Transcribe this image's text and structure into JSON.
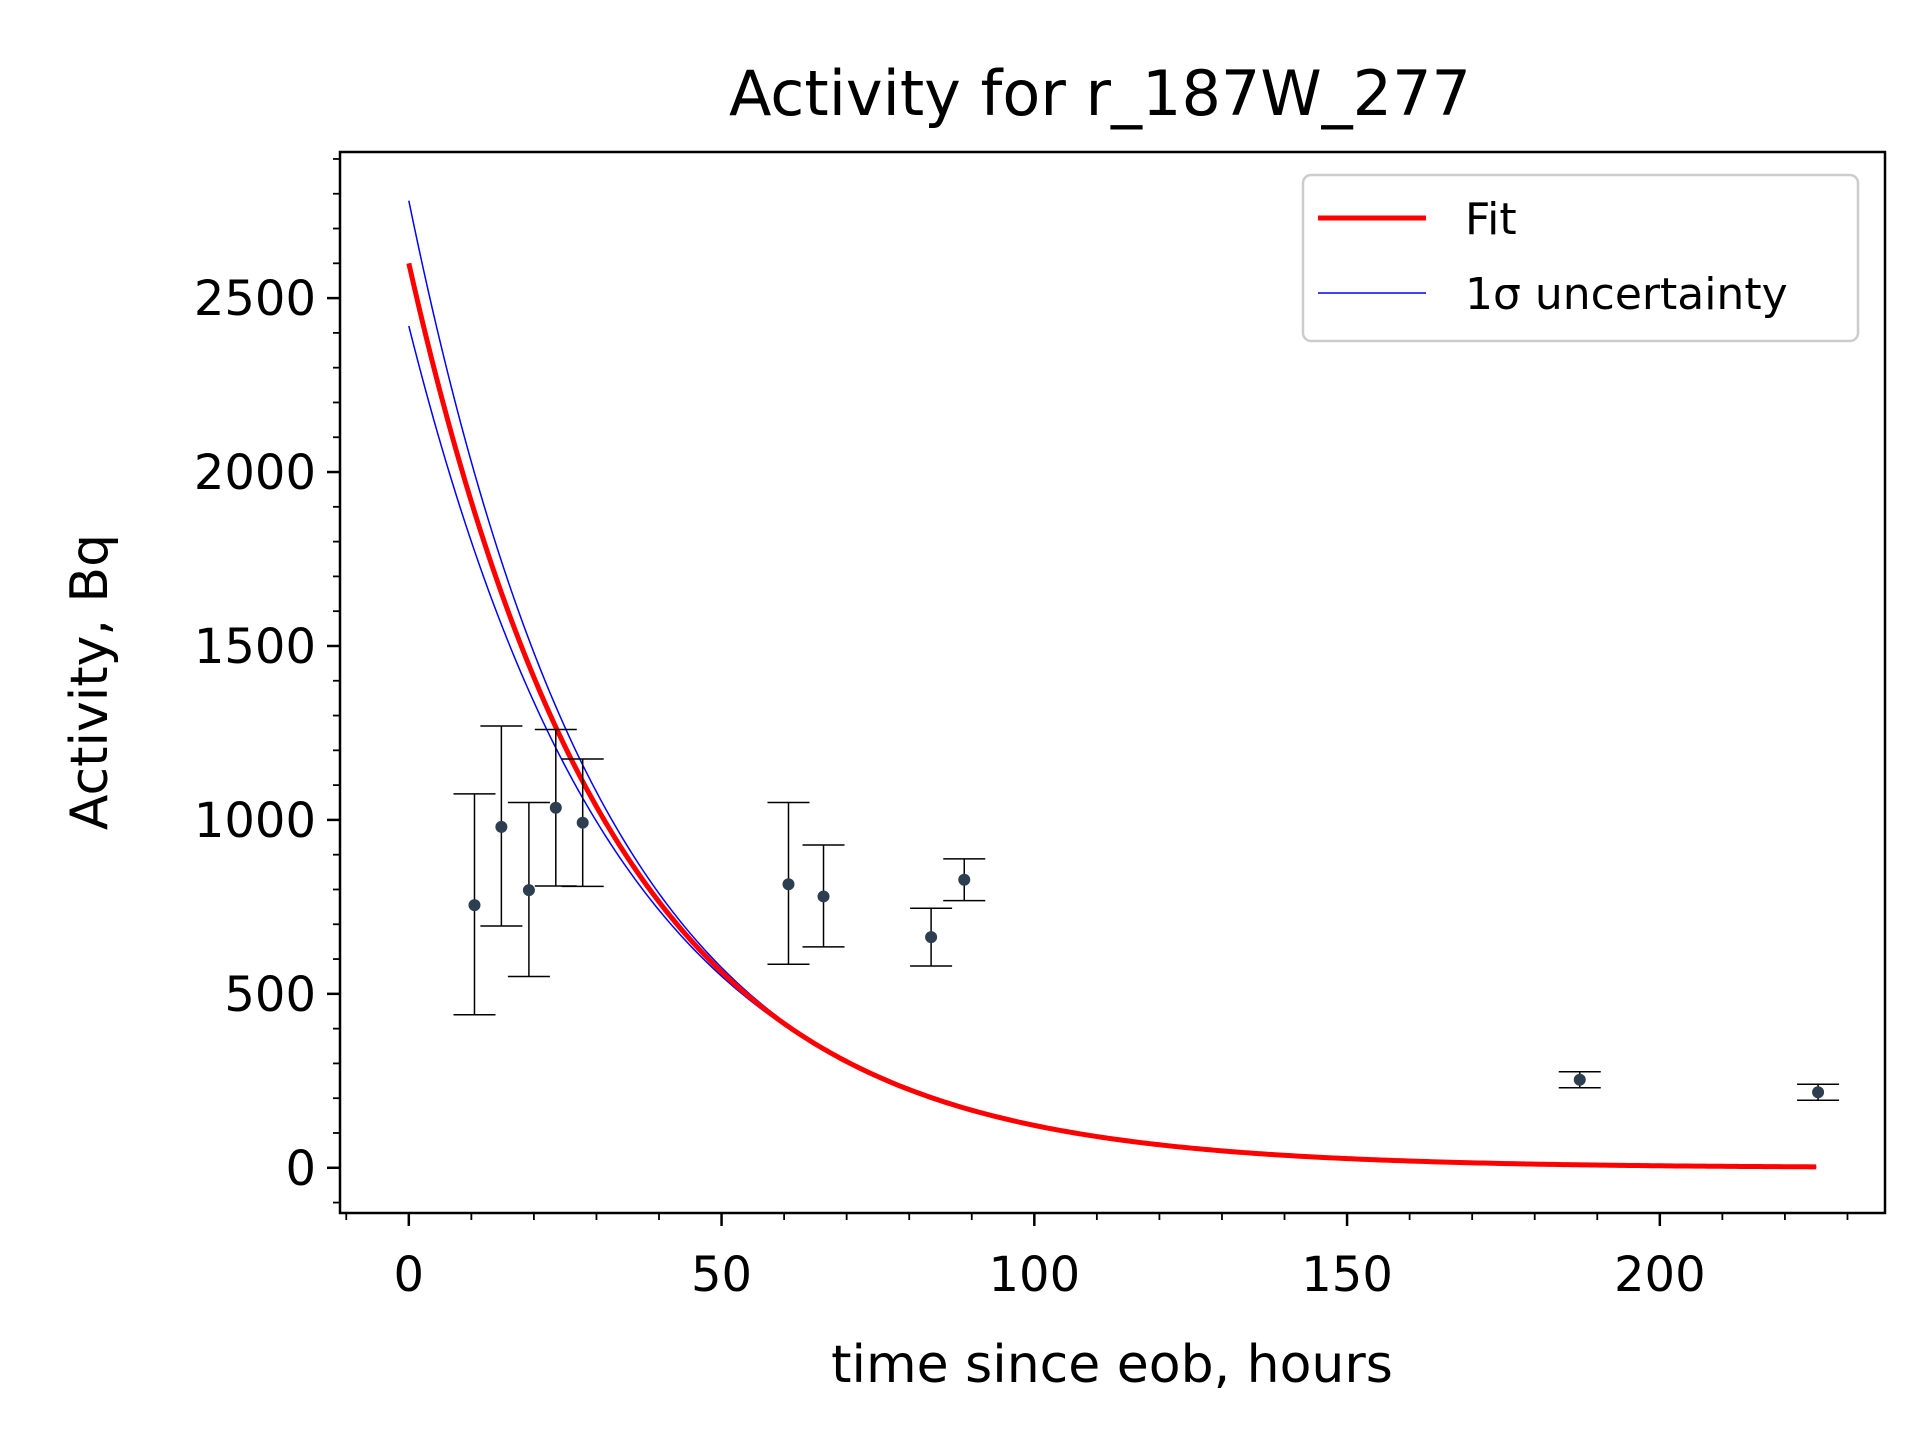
{
  "chart_data": {
    "type": "scatter",
    "title": "Activity for r_187W_277",
    "xlabel": "time since eob, hours",
    "ylabel": "Activity, Bq",
    "xlim": [
      -11,
      236
    ],
    "ylim": [
      -130,
      2920
    ],
    "xticks": [
      0,
      50,
      100,
      150,
      200
    ],
    "yticks": [
      0,
      500,
      1000,
      1500,
      2000,
      2500
    ],
    "xtick_labels": [
      "0",
      "50",
      "100",
      "150",
      "200"
    ],
    "ytick_labels": [
      "0",
      "500",
      "1000",
      "1500",
      "2000",
      "2500"
    ],
    "grid": false,
    "legend": {
      "placement": "upper right",
      "entries": [
        {
          "label": "Fit",
          "color": "#ff0000"
        },
        {
          "label": "1σ uncertainty",
          "color": "#0000ff"
        }
      ]
    },
    "colors": {
      "fit": "#ff0000",
      "uncertainty": "#0000ff",
      "points": "#2c3e50",
      "errorbars": "#000000"
    },
    "series": [
      {
        "name": "Fit",
        "kind": "curve",
        "model": "exponential_decay",
        "A0": 2600,
        "decay_constant_per_hour": 0.0306,
        "x_range": [
          0,
          225
        ]
      },
      {
        "name": "1σ uncertainty",
        "kind": "band",
        "upper": {
          "A0": 2780,
          "decay_constant_per_hour": 0.0315
        },
        "lower": {
          "A0": 2420,
          "decay_constant_per_hour": 0.0296
        },
        "x_range": [
          0,
          225
        ]
      },
      {
        "kind": "measurements",
        "points": [
          {
            "x": 10.5,
            "y": 755,
            "yerr_low": 315,
            "yerr_high": 320
          },
          {
            "x": 14.8,
            "y": 980,
            "yerr_low": 285,
            "yerr_high": 290
          },
          {
            "x": 19.2,
            "y": 798,
            "yerr_low": 248,
            "yerr_high": 252
          },
          {
            "x": 23.5,
            "y": 1035,
            "yerr_low": 225,
            "yerr_high": 225
          },
          {
            "x": 27.8,
            "y": 992,
            "yerr_low": 183,
            "yerr_high": 183
          },
          {
            "x": 60.7,
            "y": 815,
            "yerr_low": 230,
            "yerr_high": 235
          },
          {
            "x": 66.3,
            "y": 780,
            "yerr_low": 145,
            "yerr_high": 148
          },
          {
            "x": 83.5,
            "y": 663,
            "yerr_low": 83,
            "yerr_high": 83
          },
          {
            "x": 88.8,
            "y": 828,
            "yerr_low": 60,
            "yerr_high": 60
          },
          {
            "x": 187.2,
            "y": 253,
            "yerr_low": 23,
            "yerr_high": 23
          },
          {
            "x": 225.3,
            "y": 217,
            "yerr_low": 23,
            "yerr_high": 23
          }
        ]
      }
    ]
  }
}
